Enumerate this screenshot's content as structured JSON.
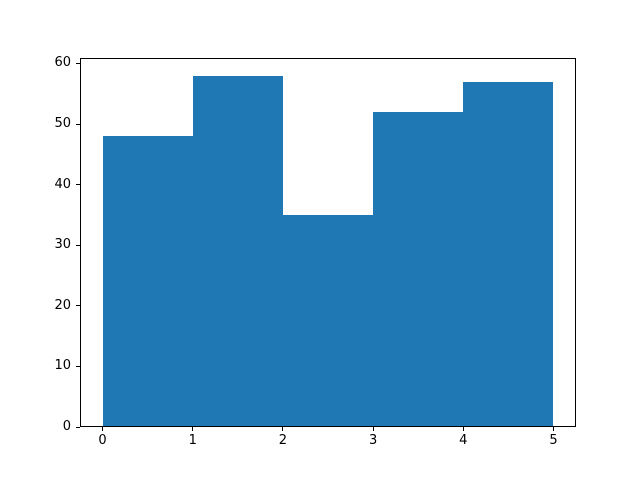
{
  "chart_data": {
    "type": "bar",
    "subtype": "histogram",
    "title": "",
    "xlabel": "",
    "ylabel": "",
    "bin_edges": [
      0,
      1,
      2,
      3,
      4,
      5
    ],
    "categories": [
      "0-1",
      "1-2",
      "2-3",
      "3-4",
      "4-5"
    ],
    "values": [
      48,
      58,
      35,
      52,
      57
    ],
    "x_ticks": [
      0,
      1,
      2,
      3,
      4,
      5
    ],
    "y_ticks": [
      0,
      10,
      20,
      30,
      40,
      50,
      60
    ],
    "xlim": [
      -0.25,
      5.25
    ],
    "ylim": [
      0,
      60.9
    ],
    "bar_color": "#1f77b4",
    "spine_color": "#000000",
    "background_color": "#ffffff",
    "grid": false,
    "legend": null
  }
}
